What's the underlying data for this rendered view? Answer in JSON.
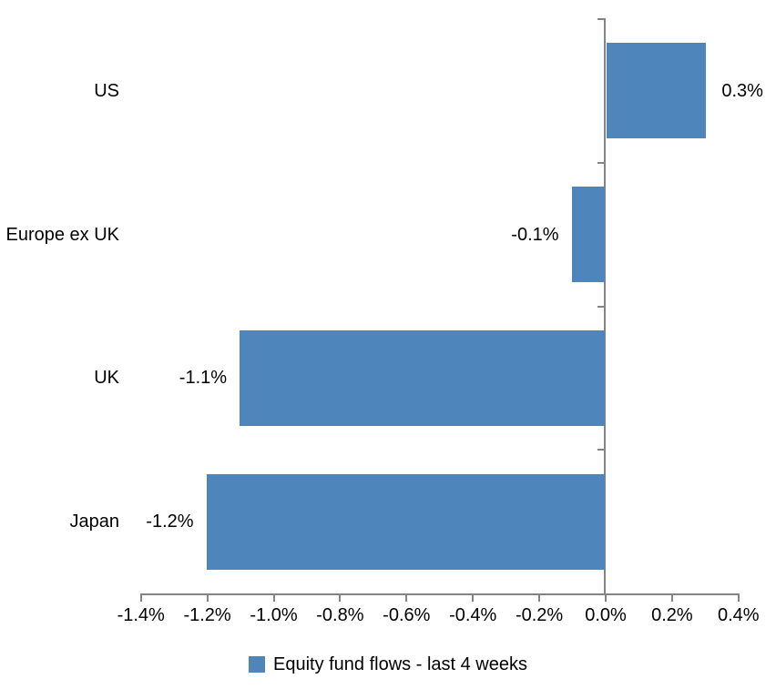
{
  "chart_data": {
    "type": "bar",
    "orientation": "horizontal",
    "title": "",
    "categories": [
      "US",
      "Europe ex UK",
      "UK",
      "Japan"
    ],
    "series": [
      {
        "name": "Equity fund flows - last 4 weeks",
        "values": [
          0.3,
          -0.1,
          -1.1,
          -1.2
        ],
        "value_labels": [
          "0.3%",
          "-0.1%",
          "-1.1%",
          "-1.2%"
        ],
        "color": "#4E86BC"
      }
    ],
    "xlim": [
      -1.4,
      0.4
    ],
    "x_ticks": [
      -1.4,
      -1.2,
      -1.0,
      -0.8,
      -0.6,
      -0.4,
      -0.2,
      0.0,
      0.2,
      0.4
    ],
    "x_tick_labels": [
      "-1.4%",
      "-1.2%",
      "-1.0%",
      "-0.8%",
      "-0.6%",
      "-0.4%",
      "-0.2%",
      "0.0%",
      "0.2%",
      "0.4%"
    ],
    "grid": false,
    "legend_position": "bottom",
    "bar_color": "#4E86BC",
    "axis_color": "#848484",
    "text_color": "#000000",
    "background": "#FFFFFF"
  },
  "legend": {
    "items": [
      {
        "label": "Equity fund flows - last 4 weeks",
        "color": "#4E86BC"
      }
    ]
  }
}
